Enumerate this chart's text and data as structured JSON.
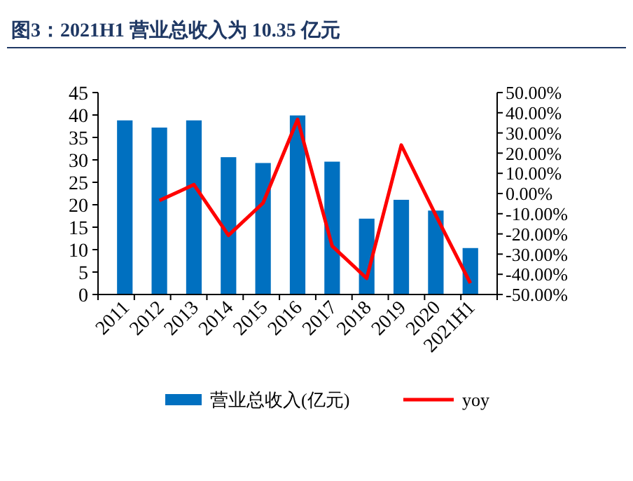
{
  "chart_data": {
    "type": "bar",
    "title": "图3：2021H1 营业总收入为 10.35 亿元",
    "categories": [
      "2011",
      "2012",
      "2013",
      "2014",
      "2015",
      "2016",
      "2017",
      "2018",
      "2019",
      "2020",
      "2021H1"
    ],
    "series": [
      {
        "name": "营业总收入(亿元)",
        "color": "#0070c0",
        "values": [
          38.8,
          37.2,
          38.8,
          30.6,
          29.3,
          39.9,
          29.6,
          16.9,
          21.1,
          18.7,
          10.35
        ]
      },
      {
        "name": "yoy",
        "type": "line",
        "axis": "y2",
        "color": "#ff0000",
        "values": [
          null,
          -3.5,
          4.4,
          -20.7,
          -4.7,
          36.7,
          -26,
          -42,
          24,
          -10.8,
          -44.4
        ]
      }
    ],
    "ylim": [
      0,
      45
    ],
    "yticks": [
      0,
      5,
      10,
      15,
      20,
      25,
      30,
      35,
      40,
      45
    ],
    "y2lim": [
      -50,
      50
    ],
    "y2ticks": [
      {
        "value": -50,
        "label": "-50.00%"
      },
      {
        "value": -40,
        "label": "-40.00%"
      },
      {
        "value": -30,
        "label": "-30.00%"
      },
      {
        "value": -20,
        "label": "-20.00%"
      },
      {
        "value": -10,
        "label": "-10.00%"
      },
      {
        "value": 0,
        "label": "0.00%"
      },
      {
        "value": 10,
        "label": "10.00%"
      },
      {
        "value": 20,
        "label": "20.00%"
      },
      {
        "value": 30,
        "label": "30.00%"
      },
      {
        "value": 40,
        "label": "40.00%"
      },
      {
        "value": 50,
        "label": "50.00%"
      }
    ],
    "legend": "bottom",
    "marker": "none",
    "line_style": "solid",
    "grid": false
  }
}
